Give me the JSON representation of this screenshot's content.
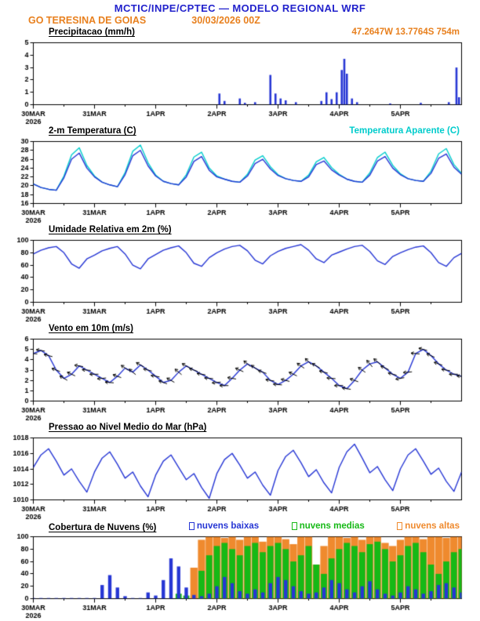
{
  "header": {
    "title": "MCTIC/INPE/CPTEC — MODELO REGIONAL WRF",
    "station": "GO TERESINA DE GOIAS",
    "run": "30/03/2026 00Z"
  },
  "colors": {
    "header_blue": "#2222cc",
    "orange": "#e8801e",
    "line_blue": "#2636d4",
    "cyan": "#00cccc",
    "green": "#16b916",
    "cloud_orange": "#ef8a2e",
    "axis": "#000000"
  },
  "x_axis": {
    "hours_span": 168,
    "step_hours": 3,
    "tick_hours": [
      0,
      24,
      48,
      72,
      96,
      120,
      144
    ],
    "tick_labels": [
      "30MAR",
      "31MAR",
      "1APR",
      "2APR",
      "3APR",
      "4APR",
      "5APR"
    ],
    "year_label": "2026"
  },
  "chart_data": [
    {
      "id": "precip",
      "type": "bar",
      "title": "Precipitacao (mm/h)",
      "right_label": "47.2647W 13.7764S 754m",
      "ylim": [
        0,
        5
      ],
      "yticks": [
        0,
        1,
        2,
        3,
        4,
        5
      ],
      "bar_color_key": "line_blue",
      "points": [
        [
          73,
          0.9
        ],
        [
          75,
          0.3
        ],
        [
          81,
          0.5
        ],
        [
          83,
          0.15
        ],
        [
          87,
          0.2
        ],
        [
          93,
          2.4
        ],
        [
          95,
          0.9
        ],
        [
          97,
          0.5
        ],
        [
          99,
          0.35
        ],
        [
          103,
          0.2
        ],
        [
          113,
          0.3
        ],
        [
          115,
          1.0
        ],
        [
          117,
          0.45
        ],
        [
          119,
          1.0
        ],
        [
          121,
          2.8
        ],
        [
          122,
          3.7
        ],
        [
          123,
          2.5
        ],
        [
          125,
          0.5
        ],
        [
          127,
          0.2
        ],
        [
          140,
          0.1
        ],
        [
          152,
          0.15
        ],
        [
          163,
          0.2
        ],
        [
          166,
          3.0
        ],
        [
          167,
          0.6
        ]
      ]
    },
    {
      "id": "temp",
      "type": "line",
      "title": "2-m Temperatura (C)",
      "right_label": "Temperatura Aparente (C)",
      "ylim": [
        16,
        30
      ],
      "yticks": [
        16,
        18,
        20,
        22,
        24,
        26,
        28,
        30
      ],
      "series": [
        {
          "name": "Temperatura Aparente (C)",
          "color_key": "cyan",
          "values": [
            20.4,
            19.6,
            19.2,
            19.0,
            22.2,
            27.0,
            28.6,
            24.6,
            22.2,
            20.8,
            20.2,
            19.8,
            23.0,
            27.8,
            29.2,
            25.2,
            22.4,
            21.0,
            20.5,
            20.2,
            22.5,
            26.5,
            27.6,
            24.0,
            22.2,
            21.5,
            21.0,
            20.8,
            22.6,
            25.8,
            26.8,
            24.3,
            22.5,
            21.6,
            21.2,
            21.0,
            22.4,
            25.4,
            26.4,
            24.1,
            22.6,
            21.5,
            21.0,
            20.8,
            22.9,
            26.4,
            27.6,
            24.6,
            22.7,
            21.6,
            21.2,
            21.0,
            23.3,
            27.2,
            28.4,
            24.8,
            22.8
          ]
        },
        {
          "name": "2-m Temperatura (C)",
          "color_key": "line_blue",
          "values": [
            20.4,
            19.6,
            19.2,
            19.0,
            21.8,
            26.0,
            27.4,
            24.0,
            22.0,
            20.8,
            20.2,
            19.8,
            22.5,
            26.8,
            28.0,
            24.5,
            22.2,
            21.0,
            20.5,
            20.2,
            22.0,
            25.5,
            26.6,
            23.5,
            22.0,
            21.5,
            21.0,
            20.8,
            22.2,
            25.0,
            26.0,
            23.8,
            22.3,
            21.6,
            21.2,
            21.0,
            22.0,
            24.8,
            25.6,
            23.6,
            22.4,
            21.5,
            21.0,
            20.8,
            22.4,
            25.6,
            26.6,
            24.0,
            22.5,
            21.6,
            21.2,
            21.0,
            22.8,
            26.2,
            27.2,
            24.2,
            22.6
          ]
        }
      ]
    },
    {
      "id": "rh",
      "type": "line",
      "title": "Umidade Relativa em 2m (%)",
      "ylim": [
        0,
        100
      ],
      "yticks": [
        0,
        20,
        40,
        60,
        80,
        100
      ],
      "series": [
        {
          "name": "Umidade Relativa em 2m (%)",
          "color_key": "line_blue",
          "values": [
            78,
            84,
            88,
            90,
            80,
            62,
            55,
            70,
            76,
            83,
            87,
            90,
            78,
            60,
            54,
            70,
            77,
            84,
            88,
            91,
            80,
            63,
            58,
            72,
            80,
            86,
            90,
            92,
            83,
            68,
            62,
            75,
            82,
            87,
            90,
            93,
            84,
            70,
            64,
            76,
            81,
            86,
            90,
            92,
            82,
            67,
            61,
            74,
            80,
            85,
            89,
            91,
            80,
            64,
            58,
            72,
            79
          ]
        }
      ]
    },
    {
      "id": "wind",
      "type": "line",
      "title": "Vento em 10m (m/s)",
      "ylim": [
        0,
        6
      ],
      "yticks": [
        0,
        1,
        2,
        3,
        4,
        5,
        6
      ],
      "series": [
        {
          "name": "Vento em 10m (m/s)",
          "color_key": "line_blue",
          "values": [
            4.6,
            4.9,
            4.4,
            3.0,
            2.2,
            2.6,
            3.4,
            3.0,
            2.6,
            2.2,
            1.8,
            2.4,
            3.2,
            2.8,
            3.5,
            3.0,
            2.4,
            1.8,
            2.0,
            2.8,
            3.4,
            3.0,
            2.6,
            2.2,
            1.8,
            1.5,
            2.2,
            3.0,
            3.6,
            3.2,
            2.8,
            2.0,
            1.6,
            2.0,
            2.6,
            3.4,
            3.8,
            3.4,
            2.8,
            2.2,
            1.5,
            1.2,
            2.0,
            3.0,
            3.6,
            3.8,
            3.2,
            2.6,
            2.2,
            2.8,
            4.6,
            5.0,
            4.4,
            3.6,
            3.0,
            2.6,
            2.4
          ]
        }
      ],
      "barbs": {
        "directions": [
          95,
          100,
          105,
          110,
          120,
          115,
          100,
          95,
          90,
          85,
          95,
          110,
          125,
          130,
          120,
          105,
          100,
          110,
          120,
          130,
          120,
          110,
          100,
          95,
          85,
          90,
          100,
          115,
          130,
          125,
          110,
          100,
          95,
          105,
          115,
          125,
          135,
          120,
          105,
          95,
          90,
          100,
          110,
          125,
          140,
          130,
          115,
          105,
          80,
          85,
          95,
          105,
          115,
          110,
          100,
          90,
          95
        ]
      }
    },
    {
      "id": "pres",
      "type": "line",
      "title": "Pressao ao Nivel Medio do Mar (hPa)",
      "ylim": [
        1010,
        1018
      ],
      "yticks": [
        1010,
        1012,
        1014,
        1016,
        1018
      ],
      "series": [
        {
          "name": "Pressao ao Nivel Medio do Mar (hPa)",
          "color_key": "line_blue",
          "values": [
            1014.2,
            1015.8,
            1016.6,
            1015.0,
            1013.2,
            1014.0,
            1012.4,
            1011.0,
            1013.6,
            1015.4,
            1016.2,
            1014.6,
            1012.8,
            1013.6,
            1011.8,
            1010.4,
            1013.2,
            1015.0,
            1015.8,
            1014.2,
            1012.6,
            1013.4,
            1011.6,
            1010.2,
            1013.4,
            1015.2,
            1016.0,
            1014.5,
            1012.8,
            1013.6,
            1011.9,
            1010.6,
            1013.8,
            1015.6,
            1016.4,
            1014.8,
            1013.0,
            1013.9,
            1012.2,
            1010.9,
            1014.2,
            1016.2,
            1017.2,
            1015.4,
            1013.5,
            1014.3,
            1012.6,
            1011.2,
            1014.0,
            1015.8,
            1016.6,
            1015.0,
            1013.3,
            1014.1,
            1012.4,
            1011.1,
            1013.6
          ]
        }
      ]
    },
    {
      "id": "clouds",
      "type": "bar",
      "title": "Cobertura de Nuvens (%)",
      "ylim": [
        0,
        100
      ],
      "yticks": [
        0,
        20,
        40,
        60,
        80,
        100
      ],
      "legend": [
        {
          "label": "nuvens baixas",
          "color_key": "line_blue"
        },
        {
          "label": "nuvens medias",
          "color_key": "green"
        },
        {
          "label": "nuvens altas",
          "color_key": "cloud_orange"
        }
      ],
      "series": [
        {
          "name": "nuvens altas",
          "color_key": "cloud_orange",
          "width_frac": 0.95,
          "values": [
            0,
            0,
            0,
            0,
            0,
            0,
            0,
            0,
            0,
            0,
            0,
            0,
            0,
            0,
            0,
            0,
            0,
            0,
            0,
            0,
            0,
            50,
            95,
            100,
            100,
            98,
            100,
            95,
            100,
            100,
            92,
            100,
            100,
            96,
            88,
            100,
            100,
            55,
            85,
            100,
            100,
            98,
            100,
            95,
            100,
            100,
            90,
            85,
            95,
            100,
            100,
            96,
            100,
            100,
            98,
            100,
            100
          ]
        },
        {
          "name": "nuvens medias",
          "color_key": "green",
          "width_frac": 0.8,
          "values": [
            0,
            0,
            0,
            0,
            0,
            0,
            0,
            0,
            0,
            0,
            0,
            0,
            0,
            0,
            0,
            0,
            0,
            0,
            0,
            8,
            5,
            0,
            45,
            70,
            85,
            90,
            80,
            70,
            85,
            90,
            75,
            85,
            90,
            80,
            60,
            70,
            85,
            55,
            40,
            65,
            80,
            90,
            85,
            75,
            88,
            92,
            80,
            60,
            70,
            85,
            90,
            75,
            55,
            40,
            60,
            75,
            80
          ]
        },
        {
          "name": "nuvens baixas",
          "color_key": "line_blue",
          "width_frac": 0.45,
          "values": [
            1,
            1,
            1,
            1,
            1,
            1,
            1,
            1,
            1,
            22,
            38,
            18,
            4,
            1,
            1,
            10,
            5,
            30,
            65,
            52,
            18,
            6,
            4,
            8,
            20,
            35,
            25,
            12,
            8,
            15,
            10,
            25,
            35,
            30,
            20,
            12,
            8,
            10,
            18,
            30,
            25,
            15,
            10,
            20,
            28,
            15,
            8,
            5,
            10,
            20,
            15,
            8,
            12,
            22,
            25,
            18,
            10
          ]
        }
      ]
    }
  ]
}
